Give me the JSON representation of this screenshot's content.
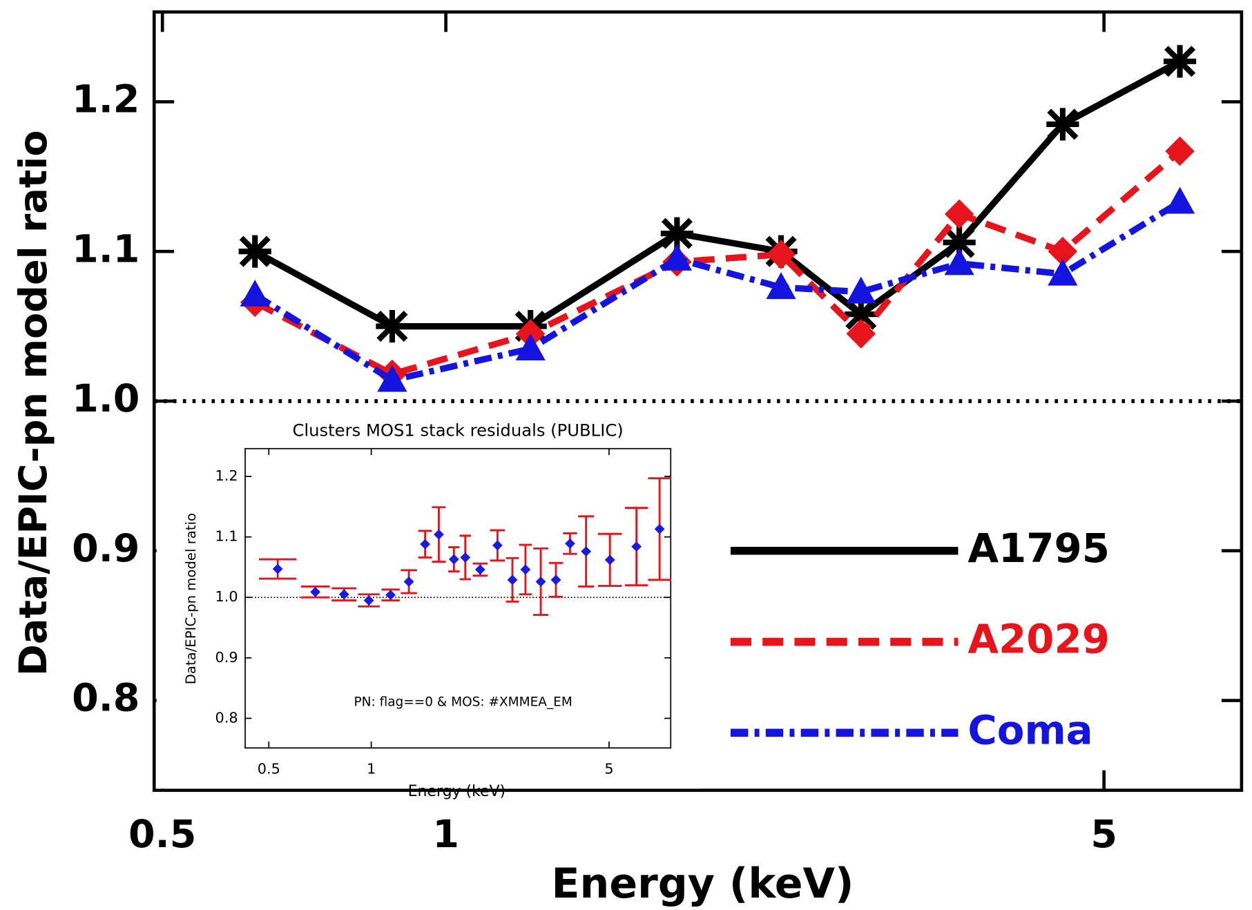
{
  "chart_data": [
    {
      "type": "line",
      "xlabel": "Energy (keV)",
      "ylabel": "Data/EPIC-pn model ratio",
      "log_x": true,
      "xlim": [
        0.49,
        7.0
      ],
      "xticks": [
        0.5,
        1,
        5
      ],
      "ylim": [
        0.74,
        1.26
      ],
      "yticks": [
        0.8,
        0.9,
        {
          "value": 1,
          "label": "1.0"
        },
        1.1,
        1.2
      ],
      "hline": 1,
      "legend": "lower right",
      "x": [
        0.627,
        0.877,
        1.23,
        1.76,
        2.27,
        2.76,
        3.51,
        4.52,
        6.02
      ],
      "series": [
        {
          "name": "A1795",
          "color": "#000000",
          "linestyle": "solid",
          "marker": "star",
          "values": [
            1.1,
            1.05,
            1.05,
            1.112,
            1.1,
            1.058,
            1.106,
            1.185,
            1.227
          ]
        },
        {
          "name": "A2029",
          "color": "#e8141c",
          "linestyle": "dashed",
          "marker": "diamond",
          "values": [
            1.066,
            1.018,
            1.045,
            1.093,
            1.098,
            1.045,
            1.125,
            1.1,
            1.167
          ]
        },
        {
          "name": "Coma",
          "color": "#1414e0",
          "linestyle": "dashdot",
          "marker": "triangle",
          "values": [
            1.071,
            1.014,
            1.035,
            1.095,
            1.076,
            1.073,
            1.092,
            1.085,
            1.133
          ]
        }
      ]
    },
    {
      "type": "errorbar",
      "title": "Clusters MOS1 stack residuals (PUBLIC)",
      "xlabel": "Energy (keV)",
      "ylabel": "Data/EPIC-pn model ratio",
      "annotation": "PN: flag==0 & MOS: #XMMEA_EM",
      "log_x": true,
      "xlim": [
        0.426,
        7.59
      ],
      "xticks": [
        0.5,
        1,
        5
      ],
      "ylim": [
        0.751,
        1.246
      ],
      "yticks": [
        0.8,
        0.9,
        {
          "value": 1,
          "label": "1.0"
        },
        1.1,
        1.2
      ],
      "hline": 1,
      "marker_color": "#1a1ae0",
      "error_color": "#e8141c",
      "x": [
        0.531,
        0.685,
        0.832,
        0.984,
        1.14,
        1.29,
        1.44,
        1.58,
        1.75,
        1.89,
        2.09,
        2.35,
        2.6,
        2.84,
        3.15,
        3.49,
        3.84,
        4.28,
        5.03,
        6.02,
        7.04
      ],
      "values": [
        1.047,
        1.009,
        1.005,
        0.995,
        1.004,
        1.026,
        1.088,
        1.104,
        1.063,
        1.066,
        1.046,
        1.086,
        1.029,
        1.046,
        1.026,
        1.029,
        1.089,
        1.076,
        1.062,
        1.084,
        1.113
      ],
      "errors": [
        0.016,
        0.009,
        0.01,
        0.01,
        0.009,
        0.019,
        0.022,
        0.045,
        0.02,
        0.036,
        0.01,
        0.025,
        0.036,
        0.041,
        0.055,
        0.028,
        0.017,
        0.058,
        0.043,
        0.064,
        0.084
      ]
    }
  ]
}
